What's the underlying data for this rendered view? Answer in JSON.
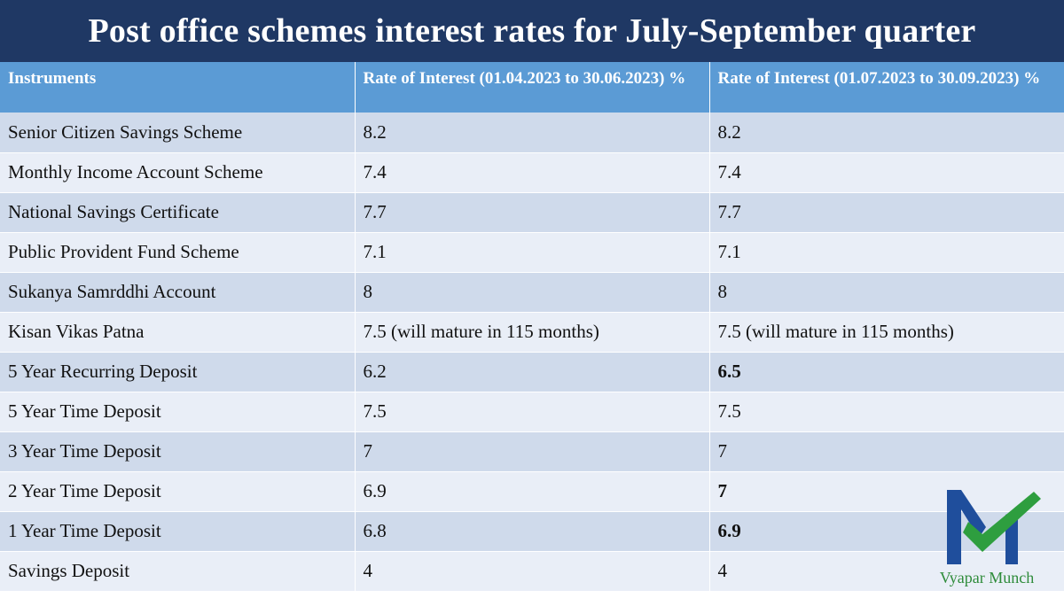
{
  "title": "Post office schemes interest rates for July-September quarter",
  "table": {
    "headers": [
      "Instruments",
      "Rate of Interest (01.04.2023 to 30.06.2023) %",
      "Rate of Interest (01.07.2023 to 30.09.2023) %"
    ],
    "rows": [
      {
        "instrument": "Senior Citizen Savings Scheme",
        "q1": "8.2",
        "q2": "8.2",
        "changed": false
      },
      {
        "instrument": "Monthly Income Account Scheme",
        "q1": "7.4",
        "q2": "7.4",
        "changed": false
      },
      {
        "instrument": "National Savings Certificate",
        "q1": "7.7",
        "q2": "7.7",
        "changed": false
      },
      {
        "instrument": "Public Provident Fund Scheme",
        "q1": "7.1",
        "q2": "7.1",
        "changed": false
      },
      {
        "instrument": "Sukanya Samrddhi Account",
        "q1": "8",
        "q2": "8",
        "changed": false
      },
      {
        "instrument": "Kisan Vikas Patna",
        "q1": "7.5 (will mature in 115 months)",
        "q2": "7.5 (will mature in 115 months)",
        "changed": false
      },
      {
        "instrument": "5 Year Recurring Deposit",
        "q1": "6.2",
        "q2": "6.5",
        "changed": true
      },
      {
        "instrument": "5 Year Time Deposit",
        "q1": "7.5",
        "q2": "7.5",
        "changed": false
      },
      {
        "instrument": "3 Year Time Deposit",
        "q1": "7",
        "q2": "7",
        "changed": false
      },
      {
        "instrument": "2 Year Time Deposit",
        "q1": "6.9",
        "q2": "7",
        "changed": true
      },
      {
        "instrument": "1 Year Time Deposit",
        "q1": "6.8",
        "q2": "6.9",
        "changed": true
      },
      {
        "instrument": "Savings Deposit",
        "q1": "4",
        "q2": "4",
        "changed": false
      }
    ]
  },
  "logo": {
    "text": "Vyapar Munch",
    "colors": {
      "blue": "#1f4e9c",
      "green": "#2e9e3f"
    }
  },
  "colors": {
    "banner": "#1f3864",
    "header": "#5b9bd5",
    "row_dark": "#cfdaeb",
    "row_light": "#e9eef7"
  }
}
